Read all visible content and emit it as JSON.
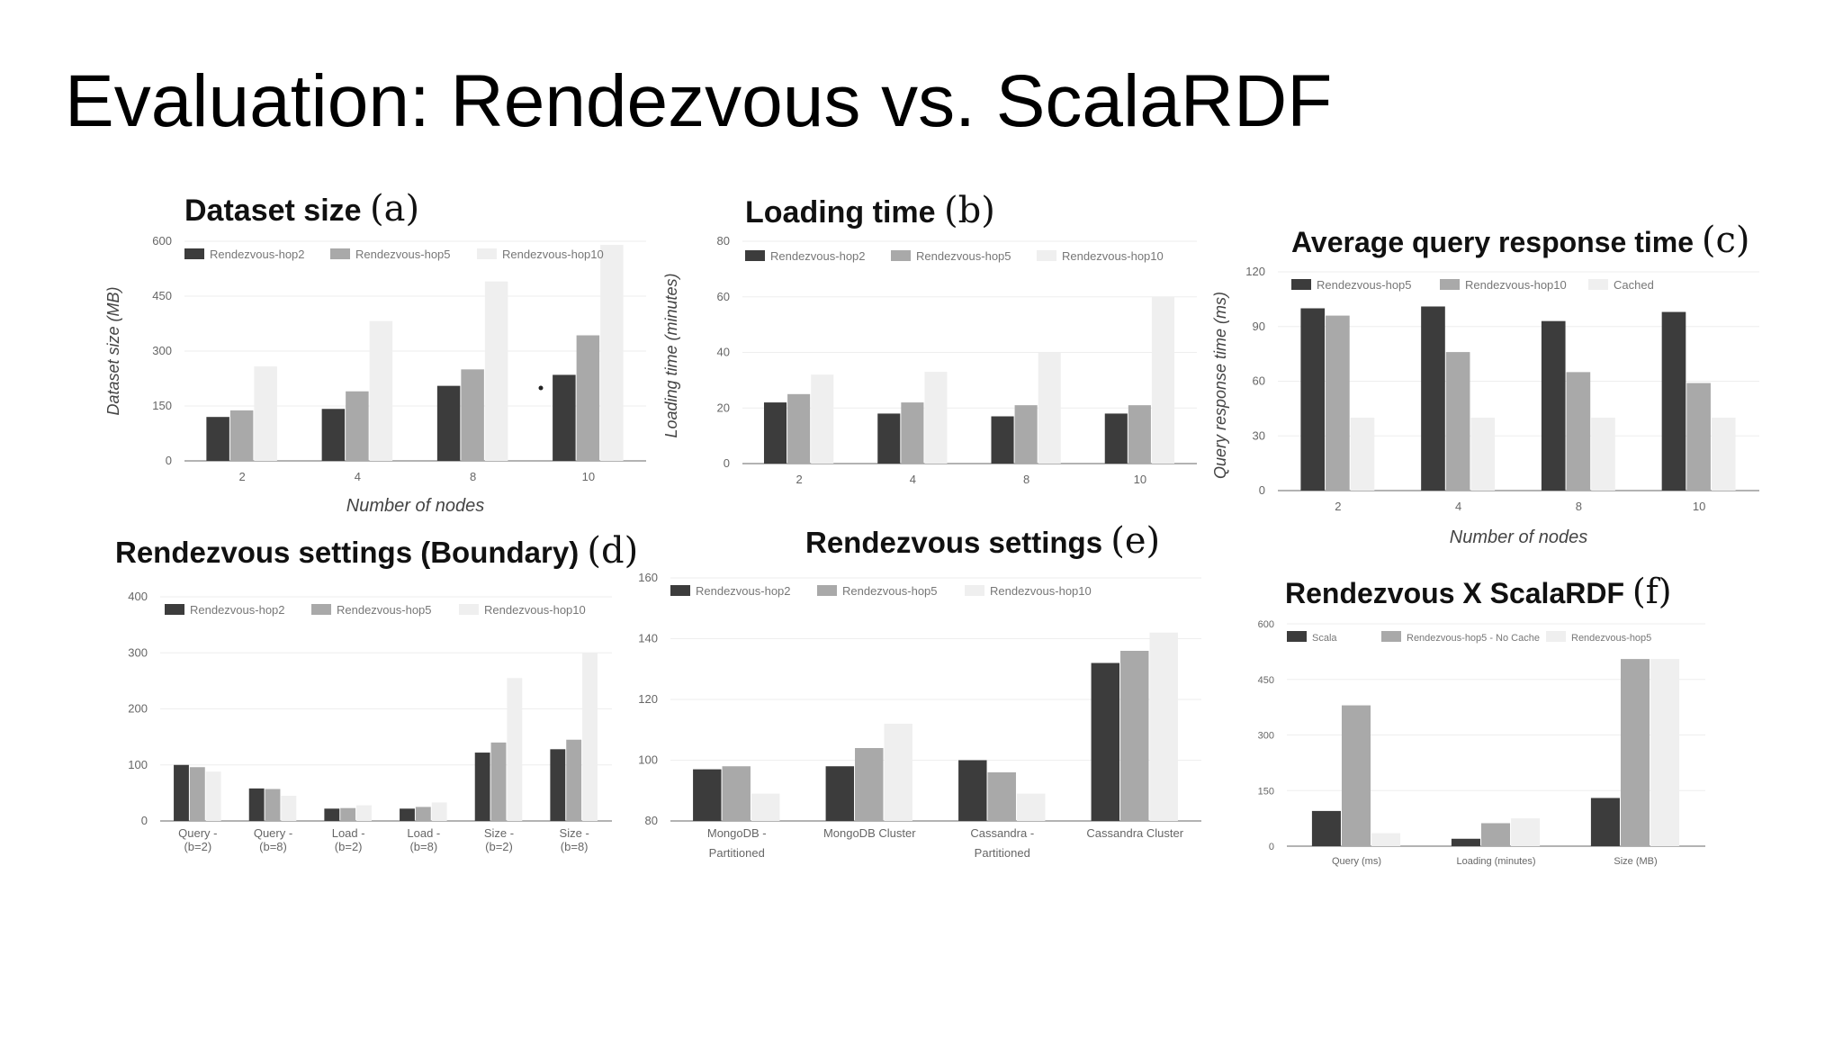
{
  "page": {
    "title": "Evaluation: Rendezvous vs. ScalaRDF"
  },
  "colors": {
    "series1": "#3c3c3c",
    "series2": "#a9a9a9",
    "series3": "#efefef",
    "axis": "#b3b3b3",
    "tick": "#666666",
    "title": "#111111"
  },
  "chart_data": [
    {
      "type": "bar",
      "id": "a",
      "title": "Dataset size",
      "tag": "(a)",
      "xlabel": "Number of nodes",
      "ylabel": "Dataset size (MB)",
      "ylim": [
        0,
        600
      ],
      "yticks": [
        "0",
        "150",
        "300",
        "450",
        "600"
      ],
      "categories": [
        "2",
        "4",
        "8",
        "10"
      ],
      "series": [
        {
          "name": "Rendezvous-hop2",
          "values": [
            120,
            142,
            205,
            235
          ]
        },
        {
          "name": "Rendezvous-hop5",
          "values": [
            138,
            190,
            250,
            343
          ]
        },
        {
          "name": "Rendezvous-hop10",
          "values": [
            258,
            382,
            490,
            590
          ]
        }
      ]
    },
    {
      "type": "bar",
      "id": "b",
      "title": "Loading time",
      "tag": "(b)",
      "xlabel": "",
      "ylabel": "Loading time (minutes)",
      "ylim": [
        0,
        80
      ],
      "yticks": [
        "0",
        "20",
        "40",
        "60",
        "80"
      ],
      "categories": [
        "2",
        "4",
        "8",
        "10"
      ],
      "series": [
        {
          "name": "Rendezvous-hop2",
          "values": [
            22,
            18,
            17,
            18
          ]
        },
        {
          "name": "Rendezvous-hop5",
          "values": [
            25,
            22,
            21,
            21
          ]
        },
        {
          "name": "Rendezvous-hop10",
          "values": [
            32,
            33,
            40,
            60
          ]
        }
      ]
    },
    {
      "type": "bar",
      "id": "c",
      "title": "Average query response time",
      "tag": "(c)",
      "xlabel": "Number of nodes",
      "ylabel": "Query response time (ms)",
      "ylim": [
        0,
        120
      ],
      "yticks": [
        "0",
        "30",
        "60",
        "90",
        "120"
      ],
      "categories": [
        "2",
        "4",
        "8",
        "10"
      ],
      "series": [
        {
          "name": "Rendezvous-hop5",
          "values": [
            100,
            101,
            93,
            98
          ]
        },
        {
          "name": "Rendezvous-hop10",
          "values": [
            96,
            76,
            65,
            59
          ]
        },
        {
          "name": "Cached",
          "values": [
            40,
            40,
            40,
            40
          ]
        }
      ]
    },
    {
      "type": "bar",
      "id": "d",
      "title": "Rendezvous settings (Boundary)",
      "tag": "(d)",
      "xlabel": "",
      "ylabel": "",
      "ylim": [
        0,
        400
      ],
      "yticks": [
        "0",
        "100",
        "200",
        "300",
        "400"
      ],
      "categories": [
        [
          "Query -",
          "(b=2)"
        ],
        [
          "Query -",
          "(b=8)"
        ],
        [
          "Load -",
          "(b=2)"
        ],
        [
          "Load -",
          "(b=8)"
        ],
        [
          "Size -",
          "(b=2)"
        ],
        [
          "Size -",
          "(b=8)"
        ]
      ],
      "series": [
        {
          "name": "Rendezvous-hop2",
          "values": [
            100,
            58,
            22,
            22,
            122,
            128
          ]
        },
        {
          "name": "Rendezvous-hop5",
          "values": [
            96,
            57,
            23,
            25,
            140,
            145
          ]
        },
        {
          "name": "Rendezvous-hop10",
          "values": [
            88,
            45,
            28,
            33,
            255,
            300
          ]
        }
      ]
    },
    {
      "type": "bar",
      "id": "e",
      "title": "Rendezvous settings",
      "tag": "(e)",
      "xlabel": "",
      "ylabel": "",
      "ylim": [
        80,
        160
      ],
      "yticks": [
        "80",
        "100",
        "120",
        "140",
        "160"
      ],
      "categories": [
        [
          "MongoDB -",
          "Partitioned"
        ],
        [
          "MongoDB Cluster"
        ],
        [
          "Cassandra -",
          "Partitioned"
        ],
        [
          "Cassandra Cluster"
        ]
      ],
      "series": [
        {
          "name": "Rendezvous-hop2",
          "values": [
            97,
            98,
            100,
            132
          ]
        },
        {
          "name": "Rendezvous-hop5",
          "values": [
            98,
            104,
            96,
            136
          ]
        },
        {
          "name": "Rendezvous-hop10",
          "values": [
            89,
            112,
            89,
            142
          ]
        }
      ]
    },
    {
      "type": "bar",
      "id": "f",
      "title": "Rendezvous X ScalaRDF",
      "tag": "(f)",
      "xlabel": "",
      "ylabel": "",
      "ylim": [
        0,
        600
      ],
      "yticks": [
        "0",
        "150",
        "300",
        "450",
        "600"
      ],
      "categories": [
        [
          "Query (ms)"
        ],
        [
          "Loading (minutes)"
        ],
        [
          "Size (MB)"
        ]
      ],
      "series": [
        {
          "name": "Scala",
          "values": [
            95,
            20,
            130
          ]
        },
        {
          "name": "Rendezvous-hop5 - No Cache",
          "values": [
            380,
            62,
            505
          ]
        },
        {
          "name": "Rendezvous-hop5",
          "values": [
            35,
            75,
            505
          ]
        }
      ]
    }
  ]
}
